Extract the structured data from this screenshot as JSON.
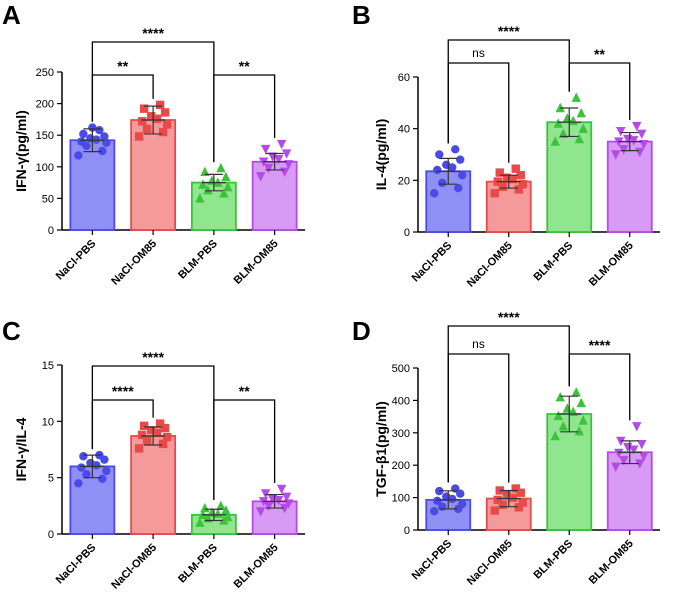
{
  "colors": {
    "NaCl-PBS": {
      "stroke": "#4a4ae8",
      "fill": "#8f8ff5"
    },
    "NaCl-OM85": {
      "stroke": "#e84a4a",
      "fill": "#f59a9a"
    },
    "BLM-PBS": {
      "stroke": "#3cc23c",
      "fill": "#8fe68f"
    },
    "BLM-OM85": {
      "stroke": "#b44ae8",
      "fill": "#d79af5"
    }
  },
  "chart_data": [
    {
      "panel": "A",
      "type": "bar",
      "ylabel": "IFN-γ(pg/ml)",
      "ylim": [
        0,
        250
      ],
      "yticks": [
        0,
        50,
        100,
        150,
        200,
        250
      ],
      "categories": [
        "NaCl-PBS",
        "NaCl-OM85",
        "BLM-PBS",
        "BLM-OM85"
      ],
      "values": [
        142,
        174,
        75,
        108
      ],
      "errors": [
        18,
        22,
        13,
        13
      ],
      "markers": [
        "circle",
        "square",
        "triangle",
        "invtriangle"
      ],
      "points": [
        [
          118,
          125,
          133,
          138,
          140,
          143,
          145,
          148,
          152,
          158,
          162
        ],
        [
          148,
          155,
          160,
          167,
          172,
          176,
          180,
          186,
          192,
          198
        ],
        [
          50,
          58,
          63,
          68,
          72,
          75,
          78,
          84,
          92,
          98
        ],
        [
          85,
          92,
          98,
          104,
          108,
          112,
          116,
          121,
          128,
          136
        ]
      ],
      "comparisons": [
        {
          "from": 0,
          "to": 1,
          "label": "**"
        },
        {
          "from": 0,
          "to": 2,
          "label": "****"
        },
        {
          "from": 2,
          "to": 3,
          "label": "**"
        }
      ]
    },
    {
      "panel": "B",
      "type": "bar",
      "ylabel": "IL-4(pg/ml)",
      "ylim": [
        0,
        60
      ],
      "yticks": [
        0,
        20,
        40,
        60
      ],
      "categories": [
        "NaCl-PBS",
        "NaCl-OM85",
        "BLM-PBS",
        "BLM-OM85"
      ],
      "values": [
        23.5,
        19.5,
        42.5,
        35
      ],
      "errors": [
        5,
        2.5,
        5.5,
        3.5
      ],
      "markers": [
        "circle",
        "square",
        "triangle",
        "invtriangle"
      ],
      "points": [
        [
          15,
          17,
          19,
          22,
          24,
          25,
          26,
          28,
          30,
          32
        ],
        [
          15,
          16.5,
          17.5,
          18.5,
          19.5,
          20.5,
          21,
          22,
          23,
          24.5
        ],
        [
          35,
          36,
          38,
          40,
          42,
          43,
          44,
          46,
          48,
          52
        ],
        [
          30,
          31,
          32,
          34,
          35,
          35.5,
          36,
          38,
          39,
          41
        ]
      ],
      "comparisons": [
        {
          "from": 0,
          "to": 1,
          "label": "ns"
        },
        {
          "from": 0,
          "to": 2,
          "label": "****"
        },
        {
          "from": 2,
          "to": 3,
          "label": "**"
        }
      ]
    },
    {
      "panel": "C",
      "type": "bar",
      "ylabel": "IFN-γ/IL-4",
      "ylim": [
        0,
        15
      ],
      "yticks": [
        0,
        5,
        10,
        15
      ],
      "categories": [
        "NaCl-PBS",
        "NaCl-OM85",
        "BLM-PBS",
        "BLM-OM85"
      ],
      "values": [
        6.0,
        8.7,
        1.7,
        2.9
      ],
      "errors": [
        1.0,
        0.8,
        0.5,
        0.6
      ],
      "markers": [
        "circle",
        "square",
        "triangle",
        "invtriangle"
      ],
      "points": [
        [
          4.5,
          4.9,
          5.3,
          5.6,
          5.9,
          6.1,
          6.3,
          6.6,
          6.9,
          7.0
        ],
        [
          7.6,
          8.0,
          8.3,
          8.6,
          8.8,
          9.0,
          9.2,
          9.4,
          9.6,
          9.8
        ],
        [
          1.0,
          1.2,
          1.4,
          1.5,
          1.7,
          1.8,
          1.9,
          2.1,
          2.3,
          2.5
        ],
        [
          2.0,
          2.3,
          2.5,
          2.7,
          2.9,
          3.0,
          3.1,
          3.3,
          3.6,
          4.0
        ]
      ],
      "comparisons": [
        {
          "from": 0,
          "to": 1,
          "label": "****"
        },
        {
          "from": 0,
          "to": 2,
          "label": "****"
        },
        {
          "from": 2,
          "to": 3,
          "label": "**"
        }
      ]
    },
    {
      "panel": "D",
      "type": "bar",
      "ylabel": "TGF-β1(pg/ml)",
      "ylim": [
        0,
        500
      ],
      "yticks": [
        0,
        100,
        200,
        300,
        400,
        500
      ],
      "categories": [
        "NaCl-PBS",
        "NaCl-OM85",
        "BLM-PBS",
        "BLM-OM85"
      ],
      "values": [
        93,
        97,
        358,
        240
      ],
      "errors": [
        28,
        25,
        55,
        35
      ],
      "markers": [
        "circle",
        "square",
        "triangle",
        "invtriangle"
      ],
      "points": [
        [
          58,
          65,
          72,
          80,
          90,
          96,
          103,
          112,
          120,
          128
        ],
        [
          60,
          70,
          78,
          85,
          93,
          100,
          108,
          115,
          122,
          128
        ],
        [
          290,
          305,
          320,
          338,
          352,
          365,
          375,
          392,
          410,
          425
        ],
        [
          195,
          205,
          215,
          228,
          238,
          248,
          256,
          265,
          275,
          320
        ]
      ],
      "comparisons": [
        {
          "from": 0,
          "to": 1,
          "label": "ns"
        },
        {
          "from": 0,
          "to": 2,
          "label": "****"
        },
        {
          "from": 2,
          "to": 3,
          "label": "****"
        }
      ]
    }
  ]
}
